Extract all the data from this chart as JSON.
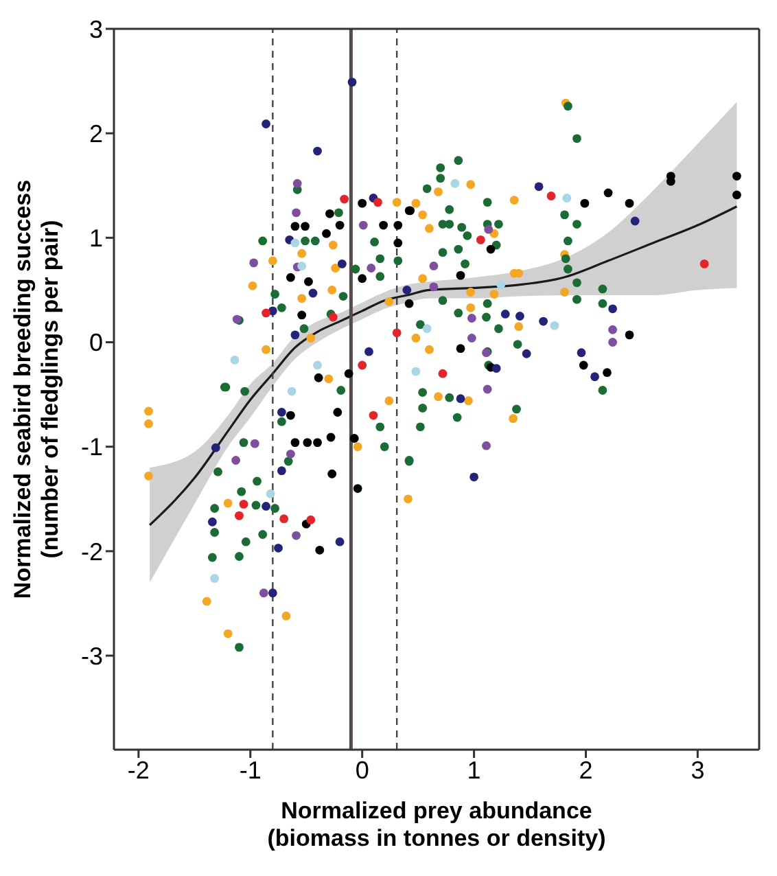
{
  "chart_data": {
    "type": "scatter",
    "xlabel": "Normalized prey abundance\n(biomass in tonnes or density)",
    "ylabel": "Normalized seabird breeding success\n(number of fledglings per pair)",
    "xlim": [
      -2.22,
      3.55
    ],
    "ylim": [
      -3.9,
      3
    ],
    "xticks": [
      -2,
      -1,
      0,
      1,
      2,
      3
    ],
    "yticks": [
      -3,
      -2,
      -1,
      0,
      1,
      2,
      3
    ],
    "grid": false,
    "legend": false,
    "marker": "circle",
    "ref_lines": [
      {
        "axis": "x",
        "value": -0.8,
        "color": "#444444",
        "line_style": "dashed"
      },
      {
        "axis": "x",
        "value": -0.1,
        "color": "#5a4a48",
        "line_style": "solid"
      },
      {
        "axis": "x",
        "value": 0.31,
        "color": "#444444",
        "line_style": "dashed"
      }
    ],
    "series": [
      {
        "color": "#f5a623",
        "x": [
          -1.91,
          -1.91,
          -1.91,
          -1.39,
          -1.2,
          -0.68,
          -1.2,
          0.24,
          -0.04,
          0.41,
          -0.8,
          -0.98,
          -0.54,
          -0.26,
          -0.24,
          -0.27,
          -0.54,
          -0.86,
          -0.3,
          0.48,
          0.24,
          -0.46,
          1.82,
          0.97,
          1.36,
          0.68,
          0.31,
          0.54,
          0.6,
          1.18,
          1.36,
          1.4,
          0.97,
          0.97,
          1.18,
          1.81,
          1.81,
          1.4,
          0.6,
          0.54,
          0.48,
          0.68,
          0.95,
          1.35
        ],
        "values": [
          -0.66,
          -0.78,
          -1.28,
          -2.48,
          -2.79,
          -2.62,
          -1.54,
          -0.56,
          -1.0,
          -1.5,
          0.78,
          0.54,
          0.85,
          0.93,
          0.71,
          0.5,
          0.42,
          -0.07,
          -0.35,
          1.33,
          0.39,
          0.04,
          2.29,
          1.51,
          1.36,
          1.44,
          1.34,
          1.22,
          1.09,
          1.04,
          0.66,
          0.66,
          0.48,
          0.33,
          0.46,
          0.84,
          0.48,
          0.15,
          -0.07,
          0.61,
          0.04,
          -0.52,
          -0.56,
          -0.73
        ]
      },
      {
        "color": "#1b6b35",
        "x": [
          -1.1,
          -1.34,
          -1.1,
          -1.04,
          -1.32,
          -1.32,
          -0.89,
          -0.95,
          -1.08,
          -0.78,
          -1.29,
          -1.06,
          -0.72,
          -0.66,
          -0.94,
          -0.19,
          0.2,
          0.42,
          0.16,
          -1.22,
          -1.05,
          -0.58,
          -0.89,
          -0.51,
          -0.42,
          -0.21,
          -1.1,
          -0.78,
          -0.72,
          -0.52,
          -1.23,
          0.11,
          0.16,
          0.16,
          -0.06,
          -0.17,
          -0.28,
          0.52,
          0.32,
          1.84,
          1.92,
          0.86,
          0.7,
          0.7,
          0.58,
          1.12,
          0.78,
          0.72,
          0.78,
          0.89,
          0.94,
          1.12,
          1.22,
          1.2,
          0.86,
          0.72,
          0.92,
          1.81,
          1.92,
          1.84,
          1.82,
          1.84,
          1.92,
          1.92,
          2.15,
          2.15,
          0.72,
          1.12,
          1.11,
          1.22,
          0.86,
          1.39,
          1.12,
          1.13,
          2.15,
          0.54,
          0.54,
          0.78,
          0.85,
          0.52,
          0.42,
          1.38
        ],
        "values": [
          -2.92,
          -2.06,
          -2.05,
          -1.91,
          -1.82,
          -1.59,
          -1.84,
          -1.56,
          -1.43,
          -1.59,
          -1.24,
          -0.96,
          -0.76,
          -1.14,
          -1.33,
          -0.46,
          -1.0,
          -1.14,
          -0.81,
          -0.43,
          -0.47,
          1.46,
          0.97,
          0.97,
          0.97,
          1.24,
          0.21,
          0.46,
          0.33,
          0.13,
          -0.43,
          0.96,
          0.8,
          0.63,
          0.7,
          0.44,
          0.27,
          0.17,
          0.78,
          2.26,
          1.95,
          1.74,
          1.67,
          1.57,
          1.47,
          1.34,
          1.27,
          1.13,
          1.13,
          1.1,
          1.02,
          1.13,
          1.13,
          0.93,
          0.89,
          0.86,
          0.75,
          1.22,
          1.13,
          0.97,
          0.8,
          0.7,
          0.57,
          0.41,
          0.51,
          0.37,
          0.4,
          0.37,
          0.24,
          0.13,
          0.28,
          -0.02,
          -0.09,
          -0.22,
          -0.46,
          -0.48,
          -0.63,
          -0.53,
          -0.72,
          -0.81,
          -1.13,
          -0.64
        ]
      },
      {
        "color": "#000000",
        "x": [
          -0.64,
          -0.49,
          -0.6,
          -0.4,
          -0.28,
          -0.22,
          -0.27,
          -0.5,
          -0.38,
          -0.04,
          -0.07,
          -0.29,
          -0.2,
          -0.32,
          0.0,
          0.19,
          0.32,
          0.32,
          0.42,
          -0.6,
          -0.51,
          -0.64,
          -0.48,
          -0.54,
          0.0,
          -0.39,
          -0.12,
          0.42,
          1.99,
          2.2,
          2.39,
          2.76,
          2.76,
          3.35,
          3.35,
          0.43,
          1.15,
          0.88,
          0.88,
          2.39,
          1.98,
          2.19,
          1.15
        ],
        "values": [
          -0.7,
          -0.96,
          -0.96,
          -0.96,
          -0.91,
          -0.67,
          -1.26,
          -1.74,
          -1.99,
          -1.4,
          -0.92,
          1.23,
          1.12,
          1.04,
          1.33,
          1.12,
          1.12,
          0.95,
          1.26,
          1.11,
          1.11,
          0.62,
          0.58,
          0.26,
          0.61,
          -0.34,
          -0.3,
          0.37,
          1.33,
          1.43,
          1.33,
          1.59,
          1.54,
          1.59,
          1.41,
          1.26,
          0.89,
          0.64,
          -0.06,
          0.07,
          -0.22,
          -0.29,
          -0.24
        ]
      },
      {
        "color": "#23237a",
        "x": [
          -1.34,
          -1.31,
          -0.86,
          -0.75,
          -0.8,
          -0.2,
          -0.72,
          -0.72,
          -0.86,
          -0.09,
          -0.4,
          -0.65,
          0.1,
          -0.18,
          -0.44,
          -0.6,
          0.06,
          -0.8,
          0.4,
          1.58,
          2.44,
          2.24,
          1.28,
          1.41,
          1.62,
          1.47,
          1.96,
          2.08,
          1.2,
          0.88,
          1.0
        ],
        "values": [
          -1.72,
          -1.01,
          -1.57,
          -1.97,
          -2.4,
          -1.91,
          -1.23,
          -0.67,
          2.09,
          2.49,
          1.83,
          0.98,
          1.38,
          0.75,
          0.47,
          0.07,
          -0.09,
          0.3,
          0.5,
          1.49,
          1.16,
          0.32,
          0.27,
          0.25,
          0.2,
          -0.11,
          -0.1,
          -0.33,
          -0.25,
          -0.54,
          -1.29
        ]
      },
      {
        "color": "#7d4f9e",
        "x": [
          -0.88,
          -0.59,
          -0.96,
          -0.64,
          -1.13,
          -0.58,
          -0.59,
          -0.97,
          -0.58,
          0.01,
          0.08,
          -1.12,
          2.24,
          2.24,
          0.98,
          1.13,
          0.64,
          0.64,
          1.11,
          0.98,
          1.12,
          1.11
        ],
        "values": [
          -2.4,
          -1.85,
          -0.97,
          -1.07,
          -1.13,
          1.52,
          1.24,
          0.76,
          0.72,
          1.12,
          0.71,
          0.22,
          0.12,
          0.0,
          0.04,
          1.08,
          0.73,
          0.53,
          -0.1,
          0.23,
          -0.45,
          -0.99
        ]
      },
      {
        "color": "#e3242b",
        "x": [
          -1.06,
          -1.1,
          -0.7,
          -0.46,
          0.1,
          -0.16,
          -0.86,
          -0.26,
          0.14,
          0.31,
          0.0,
          1.69,
          1.06,
          3.06,
          0.72
        ],
        "values": [
          -1.55,
          -1.66,
          -1.69,
          -1.7,
          -0.7,
          1.37,
          0.28,
          0.24,
          1.34,
          0.09,
          -0.22,
          1.4,
          0.98,
          0.75,
          -0.3
        ]
      },
      {
        "color": "#a9d6e5",
        "x": [
          -1.32,
          -0.82,
          -0.63,
          -0.6,
          -0.54,
          -1.14,
          -0.4,
          0.83,
          1.83,
          1.72,
          0.58,
          1.24,
          0.48
        ],
        "values": [
          -2.26,
          -1.45,
          -0.47,
          0.95,
          0.73,
          -0.17,
          -0.22,
          1.52,
          1.38,
          0.16,
          0.13,
          0.55,
          -0.28
        ]
      },
      {
        "type": "line",
        "color": "#1a1a1a",
        "marker": "none",
        "x": [
          -1.9,
          -1.5,
          -1.2,
          -1.0,
          -0.8,
          -0.6,
          -0.4,
          -0.2,
          0,
          0.2,
          0.4,
          0.6,
          1.0,
          1.4,
          1.8,
          2.2,
          2.6,
          3.0,
          3.35
        ],
        "values": [
          -1.75,
          -1.3,
          -0.85,
          -0.55,
          -0.3,
          -0.05,
          0.1,
          0.2,
          0.3,
          0.4,
          0.45,
          0.5,
          0.52,
          0.55,
          0.62,
          0.78,
          0.95,
          1.12,
          1.3
        ],
        "lower": [
          -2.3,
          -1.55,
          -1.0,
          -0.72,
          -0.42,
          -0.16,
          0.0,
          0.12,
          0.22,
          0.32,
          0.38,
          0.42,
          0.42,
          0.44,
          0.45,
          0.45,
          0.45,
          0.5,
          0.52
        ],
        "upper": [
          -1.2,
          -1.05,
          -0.7,
          -0.4,
          -0.2,
          0.06,
          0.2,
          0.28,
          0.38,
          0.48,
          0.55,
          0.58,
          0.62,
          0.68,
          0.8,
          1.05,
          1.45,
          1.9,
          2.3
        ]
      }
    ]
  }
}
